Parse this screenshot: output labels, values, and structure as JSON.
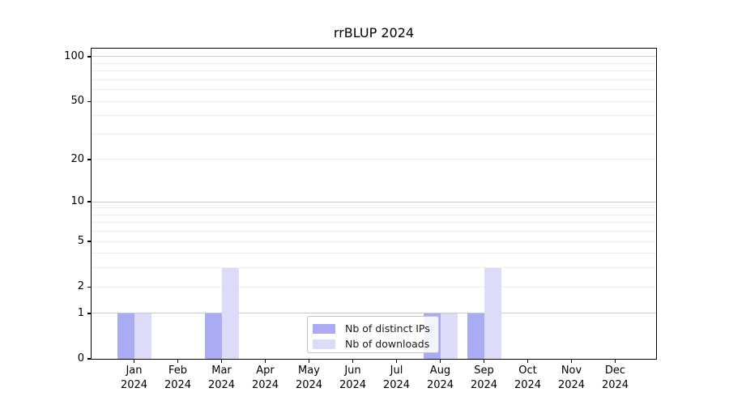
{
  "chart_data": {
    "type": "bar",
    "title": "rrBLUP 2024",
    "x_categories": [
      "Jan",
      "Feb",
      "Mar",
      "Apr",
      "May",
      "Jun",
      "Jul",
      "Aug",
      "Sep",
      "Oct",
      "Nov",
      "Dec"
    ],
    "x_year": "2024",
    "y_scale": "log1p",
    "ylim": [
      0,
      113
    ],
    "y_tick_labels": [
      0,
      1,
      2,
      5,
      10,
      20,
      50,
      100
    ],
    "y_gridlines_dark": [
      1,
      10,
      100
    ],
    "y_gridlines_light": [
      2,
      3,
      4,
      5,
      6,
      7,
      8,
      9,
      20,
      30,
      40,
      50,
      60,
      70,
      80,
      90
    ],
    "grid": "horizontal",
    "legend_position": "inside-bottom-center",
    "series": [
      {
        "name": "Nb of distinct IPs",
        "color": "#aaabf5",
        "values": [
          1,
          0,
          1,
          0,
          0,
          0,
          0,
          1,
          1,
          0,
          0,
          0
        ]
      },
      {
        "name": "Nb of downloads",
        "color": "#dcdcf8",
        "values": [
          1,
          0,
          3,
          0,
          0,
          0,
          0,
          1,
          3,
          0,
          0,
          0
        ]
      }
    ]
  }
}
